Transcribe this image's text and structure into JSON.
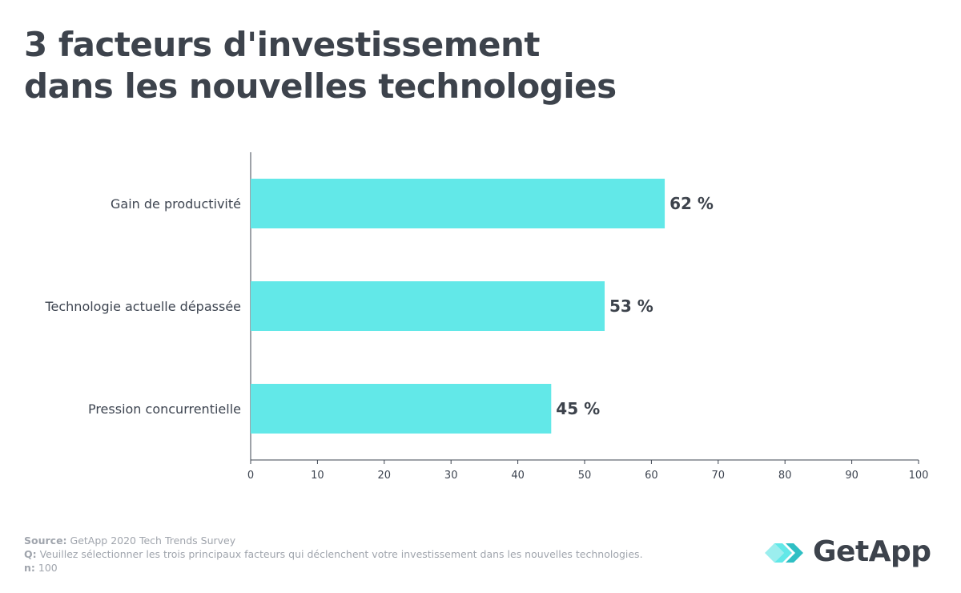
{
  "title": {
    "line1": "3 facteurs d'investissement",
    "line2": "dans les nouvelles technologies"
  },
  "chart_data": {
    "type": "bar",
    "orientation": "horizontal",
    "categories": [
      "Gain de productivité",
      "Technologie actuelle dépassée",
      "Pression concurrentielle"
    ],
    "values": [
      62,
      53,
      45
    ],
    "value_labels": [
      "62 %",
      "53 %",
      "45 %"
    ],
    "xlim": [
      0,
      100
    ],
    "xticks": [
      0,
      10,
      20,
      30,
      40,
      50,
      60,
      70,
      80,
      90,
      100
    ],
    "bar_color": "#62e8e8",
    "xlabel": "",
    "ylabel": ""
  },
  "footer": {
    "source_label": "Source:",
    "source_text": " GetApp 2020 Tech Trends Survey",
    "q_label": "Q:",
    "q_text": " Veuillez sélectionner les trois principaux facteurs qui déclenchent votre investissement dans les nouvelles technologies.",
    "n_label": "n:",
    "n_text": " 100"
  },
  "logo": {
    "text": "GetApp",
    "icon": "getapp-chevrons-icon",
    "colors": [
      "#62e8e8",
      "#2fbfc4"
    ]
  }
}
